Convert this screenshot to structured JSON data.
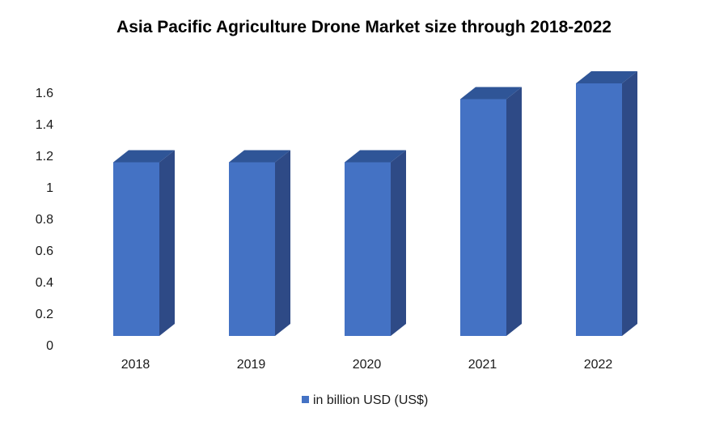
{
  "colors": {
    "bar_front": "#4472c4",
    "bar_side": "#2e4a86",
    "bar_top": "#2f5597",
    "legend_swatch": "#4472c4"
  },
  "chart_data": {
    "type": "bar",
    "title": "Asia Pacific Agriculture Drone Market size  through 2018-2022",
    "categories": [
      "2018",
      "2019",
      "2020",
      "2021",
      "2022"
    ],
    "series": [
      {
        "name": "in billion USD (US$)",
        "values": [
          1.1,
          1.1,
          1.1,
          1.5,
          1.6
        ]
      }
    ],
    "xlabel": "",
    "ylabel": "",
    "ylim": [
      0,
      1.6
    ],
    "yticks": [
      "0",
      "0.2",
      "0.4",
      "0.6",
      "0.8",
      "1",
      "1.2",
      "1.4",
      "1.6"
    ],
    "grid": false,
    "legend_position": "bottom",
    "style": "3d-column"
  }
}
